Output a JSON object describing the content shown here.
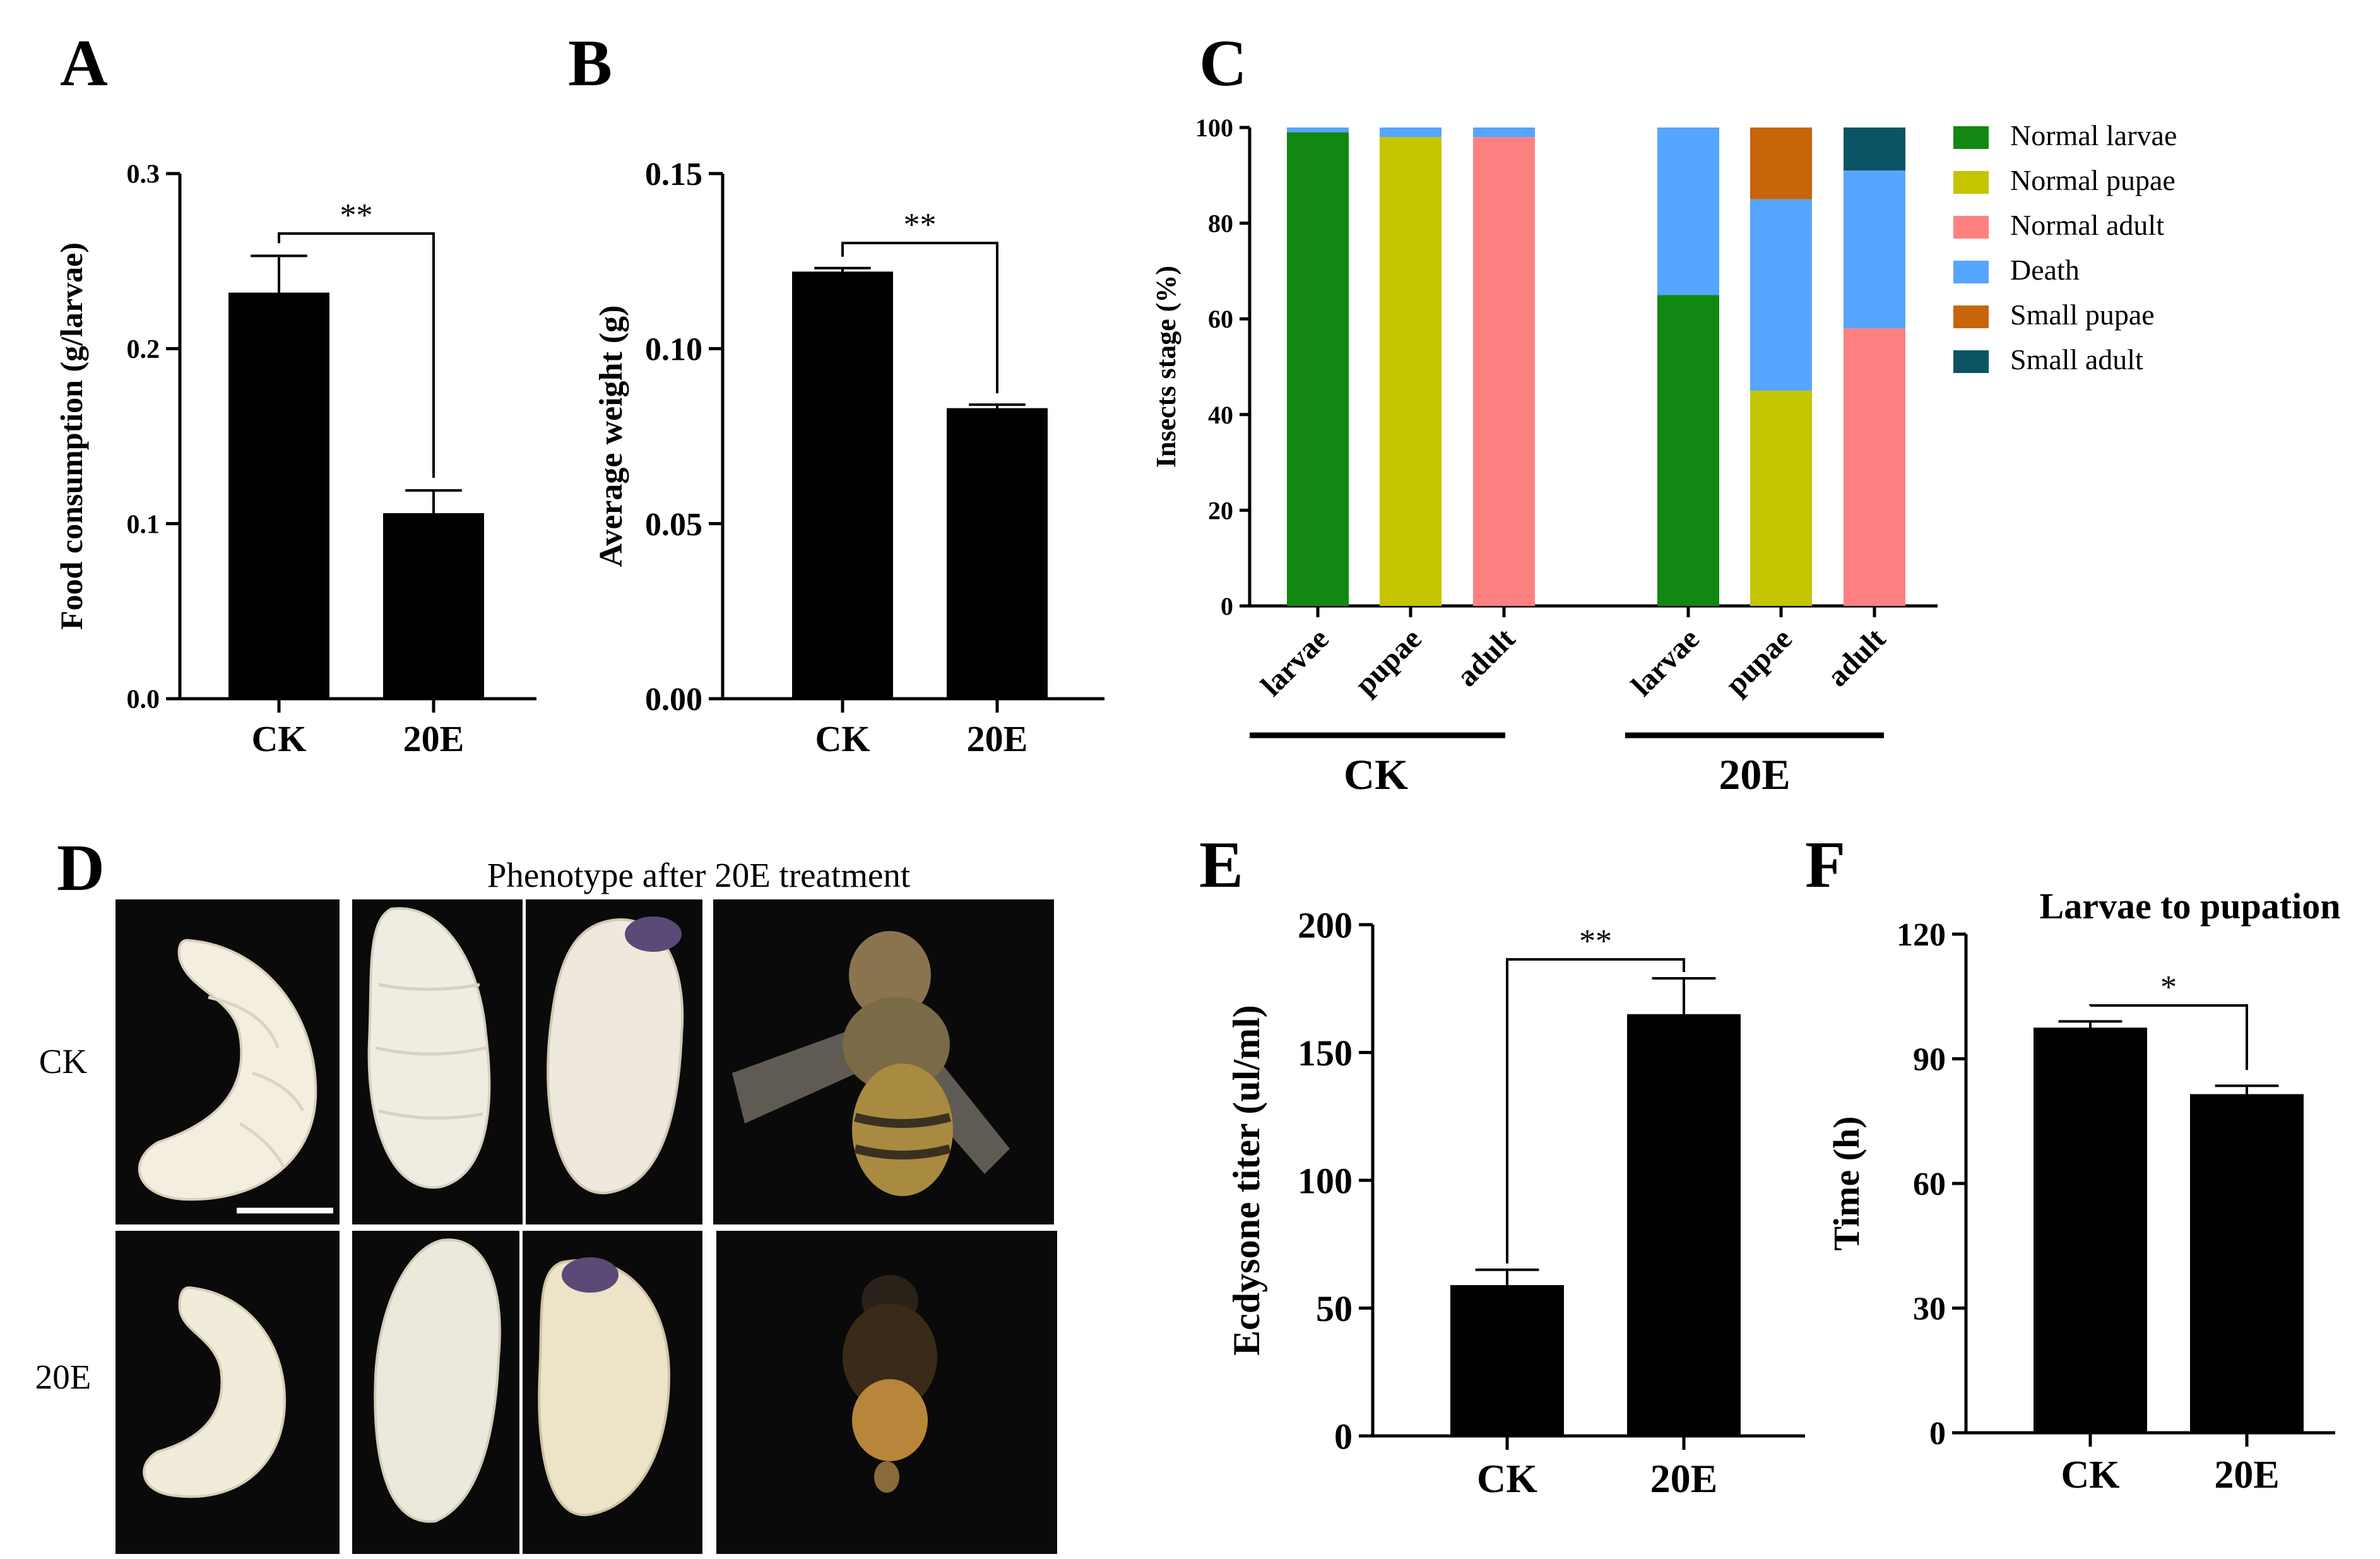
{
  "colors": {
    "bar": "#000000",
    "normal_larvae": "#118811",
    "normal_pupae": "#C4C400",
    "normal_adult": "#FF8080",
    "death": "#56A5FF",
    "small_pupae": "#C8640A",
    "small_adult": "#0B5465",
    "photo_bg": "#0a0a0a",
    "larva": "#f3eee0",
    "bee_body": "#a88a40"
  },
  "panels": {
    "A": {
      "letter": "A"
    },
    "B": {
      "letter": "B"
    },
    "C": {
      "letter": "C"
    },
    "D": {
      "letter": "D",
      "title": "Phenotype after 20E treatment",
      "row_labels": [
        "CK",
        "20E"
      ],
      "photo_icons": [
        "larva-photo-icon",
        "prepupa-photo-icon",
        "pupa-photo-icon",
        "adult-bee-photo-icon"
      ]
    },
    "E": {
      "letter": "E"
    },
    "F": {
      "letter": "F"
    }
  },
  "chart_data": [
    {
      "id": "A",
      "type": "bar",
      "categories": [
        "CK",
        "20E"
      ],
      "values": [
        0.232,
        0.106
      ],
      "errors": [
        0.021,
        0.013
      ],
      "ylabel": "Food consumption (g/larvae)",
      "ylim": [
        0,
        0.3
      ],
      "yticks": [
        "0.0",
        "0.1",
        "0.2",
        "0.3"
      ],
      "significance": "**"
    },
    {
      "id": "B",
      "type": "bar",
      "categories": [
        "CK",
        "20E"
      ],
      "values": [
        0.122,
        0.083
      ],
      "errors": [
        0.001,
        0.001
      ],
      "ylabel": "Average weight (g)",
      "ylim": [
        0,
        0.15
      ],
      "yticks": [
        "0.00",
        "0.05",
        "0.10",
        "0.15"
      ],
      "significance": "**"
    },
    {
      "id": "C",
      "type": "bar",
      "stacked": true,
      "categories": [
        "larvae",
        "pupae",
        "adult",
        "larvae",
        "pupae",
        "adult"
      ],
      "groups": [
        {
          "label": "CK",
          "indices": [
            0,
            1,
            2
          ]
        },
        {
          "label": "20E",
          "indices": [
            3,
            4,
            5
          ]
        }
      ],
      "ylabel": "Insects stage (%)",
      "ylim": [
        0,
        100
      ],
      "yticks": [
        "0",
        "20",
        "40",
        "60",
        "80",
        "100"
      ],
      "series": [
        {
          "name": "Normal larvae",
          "color": "#118811",
          "values": [
            99,
            0,
            0,
            65,
            0,
            0
          ]
        },
        {
          "name": "Normal pupae",
          "color": "#C4C400",
          "values": [
            0,
            98,
            0,
            0,
            45,
            0
          ]
        },
        {
          "name": "Normal adult",
          "color": "#FF8080",
          "values": [
            0,
            0,
            98,
            0,
            0,
            58
          ]
        },
        {
          "name": "Death",
          "color": "#56A5FF",
          "values": [
            1,
            2,
            2,
            35,
            40,
            33
          ]
        },
        {
          "name": "Small pupae",
          "color": "#C8640A",
          "values": [
            0,
            0,
            0,
            0,
            15,
            0
          ]
        },
        {
          "name": "Small adult",
          "color": "#0B5465",
          "values": [
            0,
            0,
            0,
            0,
            0,
            9
          ]
        }
      ],
      "legend": "right"
    },
    {
      "id": "E",
      "type": "bar",
      "categories": [
        "CK",
        "20E"
      ],
      "values": [
        59,
        165
      ],
      "errors": [
        6,
        14
      ],
      "ylabel": "Ecdysone titer (ul/ml)",
      "ylim": [
        0,
        200
      ],
      "yticks": [
        "0",
        "50",
        "100",
        "150",
        "200"
      ],
      "significance": "**"
    },
    {
      "id": "F",
      "type": "bar",
      "title": "Larvae to pupation",
      "categories": [
        "CK",
        "20E"
      ],
      "values": [
        97.5,
        81.5
      ],
      "errors": [
        1.5,
        2
      ],
      "ylabel": "Time (h)",
      "ylim": [
        0,
        120
      ],
      "yticks": [
        "0",
        "30",
        "60",
        "90",
        "120"
      ],
      "significance": "*"
    }
  ]
}
